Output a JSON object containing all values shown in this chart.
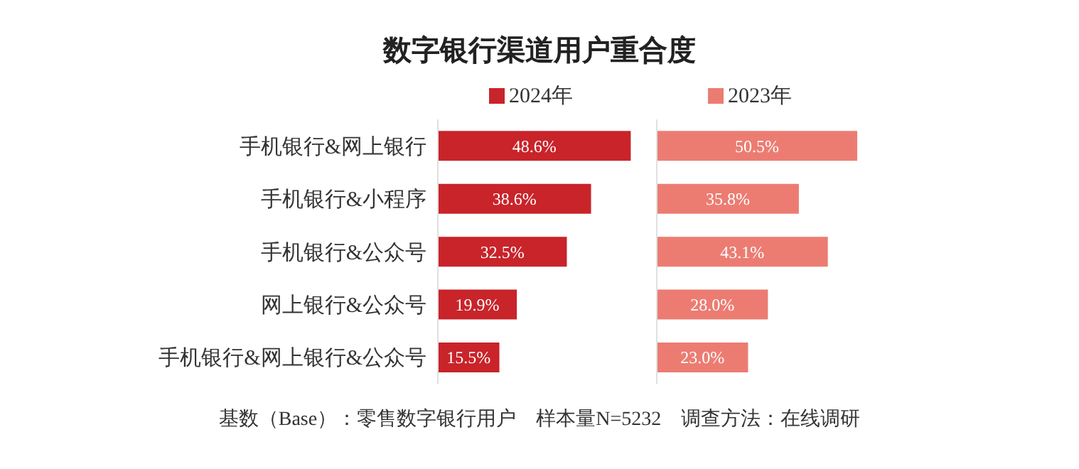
{
  "chart_data": [
    {
      "type": "bar",
      "orientation": "horizontal",
      "title": "数字银行渠道用户重合度",
      "categories": [
        "手机银行&网上银行",
        "手机银行&小程序",
        "手机银行&公众号",
        "网上银行&公众号",
        "手机银行&网上银行&公众号"
      ],
      "series": [
        {
          "name": "2024年",
          "color": "#c8242a",
          "values": [
            48.6,
            38.6,
            32.5,
            19.9,
            15.5
          ],
          "value_labels": [
            "48.6%",
            "38.6%",
            "32.5%",
            "19.9%",
            "15.5%"
          ]
        }
      ],
      "legend": "top",
      "tick_labels": "y",
      "annotations": [
        "基数（Base）：零售数字银行用户　样本量N=5232　调查方法：在线调研"
      ]
    },
    {
      "type": "bar",
      "orientation": "horizontal",
      "categories": [
        null,
        null,
        null,
        null,
        null
      ],
      "series": [
        {
          "name": "2023年",
          "color": "#ec7c72",
          "values": [
            50.5,
            35.8,
            43.1,
            28.0,
            23.0
          ],
          "value_labels": [
            "50.5%",
            "35.8%",
            "43.1%",
            "28.0%",
            "23.0%"
          ]
        }
      ],
      "legend": "top",
      "tick_labels": false
    }
  ]
}
